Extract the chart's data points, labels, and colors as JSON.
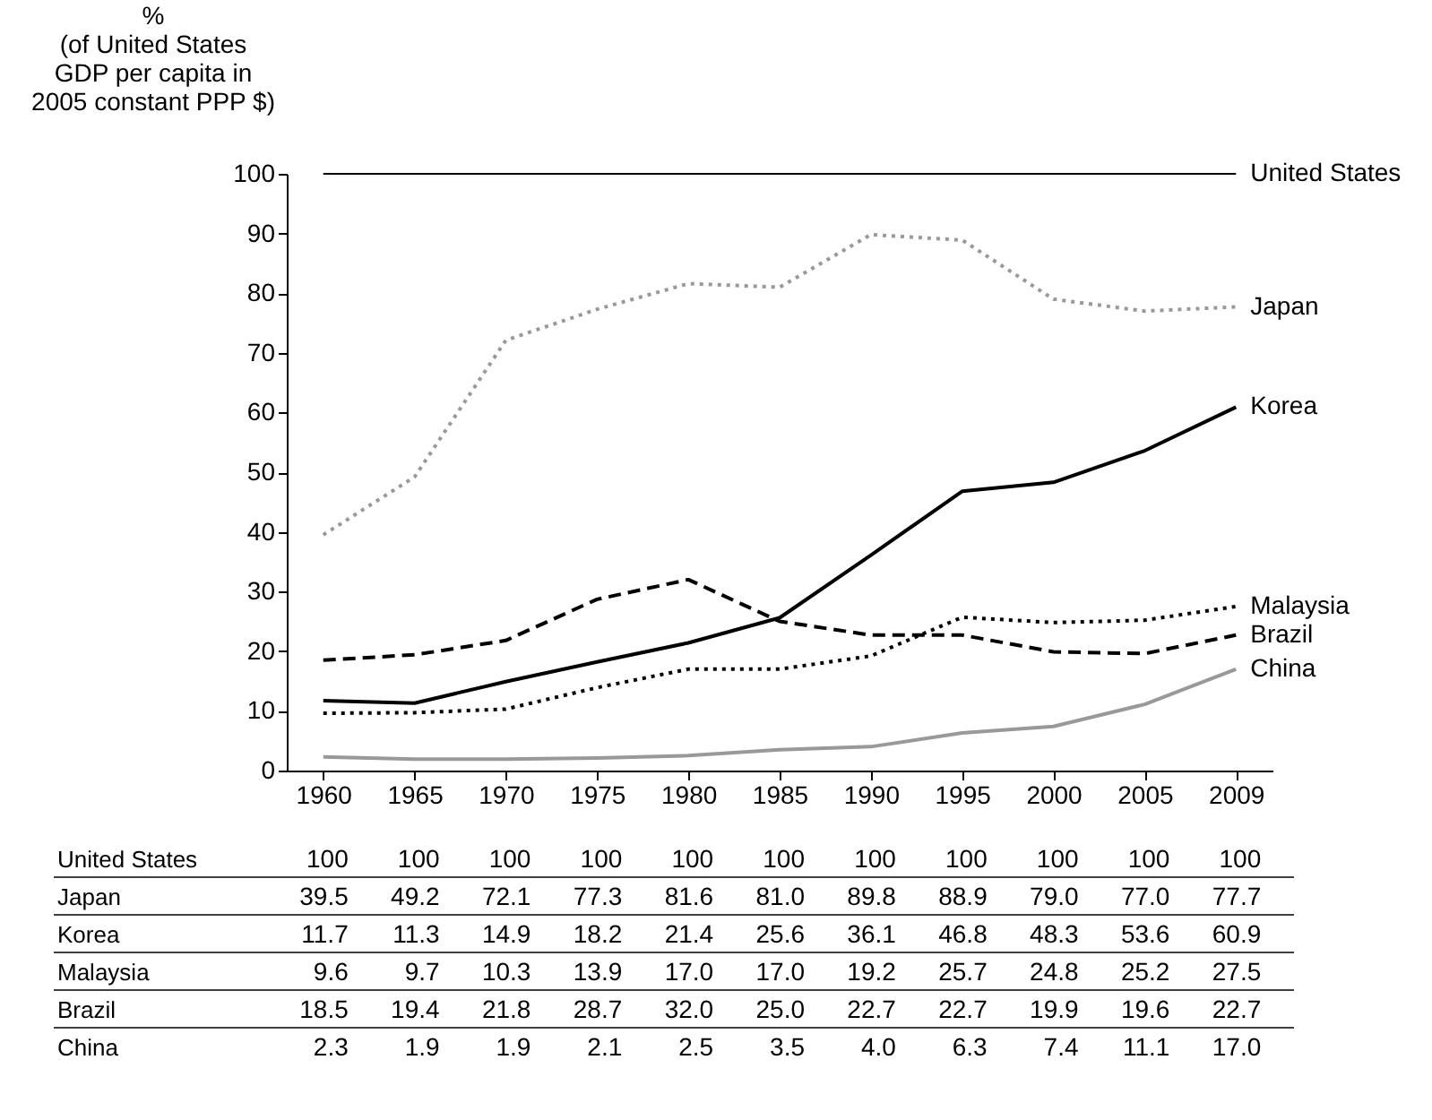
{
  "chart_data": {
    "type": "line",
    "ylabel": "%\n(of United States\nGDP per capita in\n2005 constant PPP $)",
    "categories": [
      "1960",
      "1965",
      "1970",
      "1975",
      "1980",
      "1985",
      "1990",
      "1995",
      "2000",
      "2005",
      "2009"
    ],
    "ylim": [
      0,
      100
    ],
    "yticks": [
      0,
      10,
      20,
      30,
      40,
      50,
      60,
      70,
      80,
      90,
      100
    ],
    "grid": false,
    "series": [
      {
        "name": "United States",
        "color": "#000000",
        "line_style": "solid",
        "values": [
          100,
          100,
          100,
          100,
          100,
          100,
          100,
          100,
          100,
          100,
          100
        ],
        "value_labels": [
          "100",
          "100",
          "100",
          "100",
          "100",
          "100",
          "100",
          "100",
          "100",
          "100",
          "100"
        ]
      },
      {
        "name": "Japan",
        "color": "#999999",
        "line_style": "dotted",
        "values": [
          39.5,
          49.2,
          72.1,
          77.3,
          81.6,
          81.0,
          89.8,
          88.9,
          79.0,
          77.0,
          77.7
        ],
        "value_labels": [
          "39.5",
          "49.2",
          "72.1",
          "77.3",
          "81.6",
          "81.0",
          "89.8",
          "88.9",
          "79.0",
          "77.0",
          "77.7"
        ]
      },
      {
        "name": "Korea",
        "color": "#000000",
        "line_style": "solid",
        "values": [
          11.7,
          11.3,
          14.9,
          18.2,
          21.4,
          25.6,
          36.1,
          46.8,
          48.3,
          53.6,
          60.9
        ],
        "value_labels": [
          "11.7",
          "11.3",
          "14.9",
          "18.2",
          "21.4",
          "25.6",
          "36.1",
          "46.8",
          "48.3",
          "53.6",
          "60.9"
        ]
      },
      {
        "name": "Malaysia",
        "color": "#000000",
        "line_style": "dotted",
        "values": [
          9.6,
          9.7,
          10.3,
          13.9,
          17.0,
          17.0,
          19.2,
          25.7,
          24.8,
          25.2,
          27.5
        ],
        "value_labels": [
          "9.6",
          "9.7",
          "10.3",
          "13.9",
          "17.0",
          "17.0",
          "19.2",
          "25.7",
          "24.8",
          "25.2",
          "27.5"
        ]
      },
      {
        "name": "Brazil",
        "color": "#000000",
        "line_style": "dashed",
        "values": [
          18.5,
          19.4,
          21.8,
          28.7,
          32.0,
          25.0,
          22.7,
          22.7,
          19.9,
          19.6,
          22.7
        ],
        "value_labels": [
          "18.5",
          "19.4",
          "21.8",
          "28.7",
          "32.0",
          "25.0",
          "22.7",
          "22.7",
          "19.9",
          "19.6",
          "22.7"
        ]
      },
      {
        "name": "China",
        "color": "#999999",
        "line_style": "solid",
        "values": [
          2.3,
          1.9,
          1.9,
          2.1,
          2.5,
          3.5,
          4.0,
          6.3,
          7.4,
          11.1,
          17.0
        ],
        "value_labels": [
          "2.3",
          "1.9",
          "1.9",
          "2.1",
          "2.5",
          "3.5",
          "4.0",
          "6.3",
          "7.4",
          "11.1",
          "17.0"
        ]
      }
    ]
  }
}
